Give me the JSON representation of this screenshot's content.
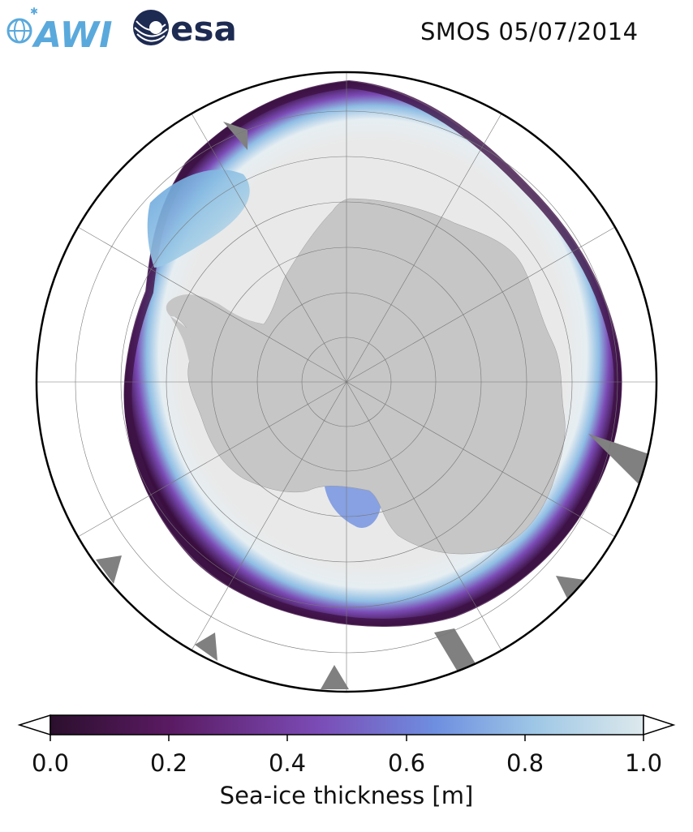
{
  "header": {
    "title": "SMOS 05/07/2014",
    "logos": {
      "awi": {
        "text": "AWI",
        "icon": "awi-logo-icon",
        "color": "#5aa9dc"
      },
      "esa": {
        "text": "esa",
        "icon": "esa-logo-icon",
        "color": "#1d2a52"
      }
    }
  },
  "map": {
    "projection": "south-polar-stereographic",
    "graticule": "on",
    "colors": {
      "land": "#c6c6c6",
      "no_data": "#808080",
      "ocean": "#ffffff",
      "ice_thick": "#e9e9e9"
    }
  },
  "colorbar": {
    "label": "Sea-ice thickness [m]",
    "ticks": [
      "0.0",
      "0.2",
      "0.4",
      "0.6",
      "0.8",
      "1.0"
    ],
    "min": 0.0,
    "max": 1.0,
    "colormap": "dense-reversed",
    "extend": "both",
    "stops": [
      "#2b0f2d",
      "#5a1a62",
      "#7b4bb5",
      "#6e8fe0",
      "#9fc8e6",
      "#dde9ec"
    ]
  }
}
